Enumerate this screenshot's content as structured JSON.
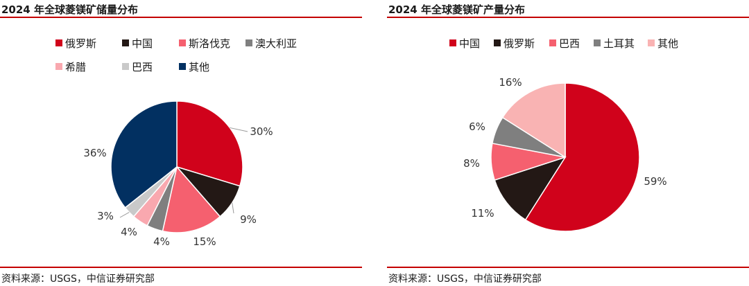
{
  "charts": {
    "left": {
      "title": "2024 年全球菱镁矿储量分布",
      "source": "资料来源：USGS，中信证券研究部"
    },
    "right": {
      "title": "2024 年全球菱镁矿产量分布",
      "source": "资料来源：USGS，中信证券研究部"
    }
  },
  "chart_data": [
    {
      "type": "pie",
      "title": "2024 年全球菱镁矿储量分布",
      "legend_position": "top",
      "slices": [
        {
          "label": "俄罗斯",
          "value": 30,
          "display": "30%",
          "color": "#D0021B"
        },
        {
          "label": "中国",
          "value": 9,
          "display": "9%",
          "color": "#231815"
        },
        {
          "label": "斯洛伐克",
          "value": 15,
          "display": "15%",
          "color": "#F5606F"
        },
        {
          "label": "澳大利亚",
          "value": 4,
          "display": "4%",
          "color": "#7F7F7F"
        },
        {
          "label": "希腊",
          "value": 4,
          "display": "4%",
          "color": "#F9A8AF"
        },
        {
          "label": "巴西",
          "value": 3,
          "display": "3%",
          "color": "#C9C9C9"
        },
        {
          "label": "其他",
          "value": 36,
          "display": "36%",
          "color": "#023061"
        }
      ]
    },
    {
      "type": "pie",
      "title": "2024 年全球菱镁矿产量分布",
      "legend_position": "top",
      "slices": [
        {
          "label": "中国",
          "value": 59,
          "display": "59%",
          "color": "#D0021B"
        },
        {
          "label": "俄罗斯",
          "value": 11,
          "display": "11%",
          "color": "#231815"
        },
        {
          "label": "巴西",
          "value": 8,
          "display": "8%",
          "color": "#F5606F"
        },
        {
          "label": "土耳其",
          "value": 6,
          "display": "6%",
          "color": "#7F7F7F"
        },
        {
          "label": "其他",
          "value": 16,
          "display": "16%",
          "color": "#F9B3B3"
        }
      ]
    }
  ]
}
